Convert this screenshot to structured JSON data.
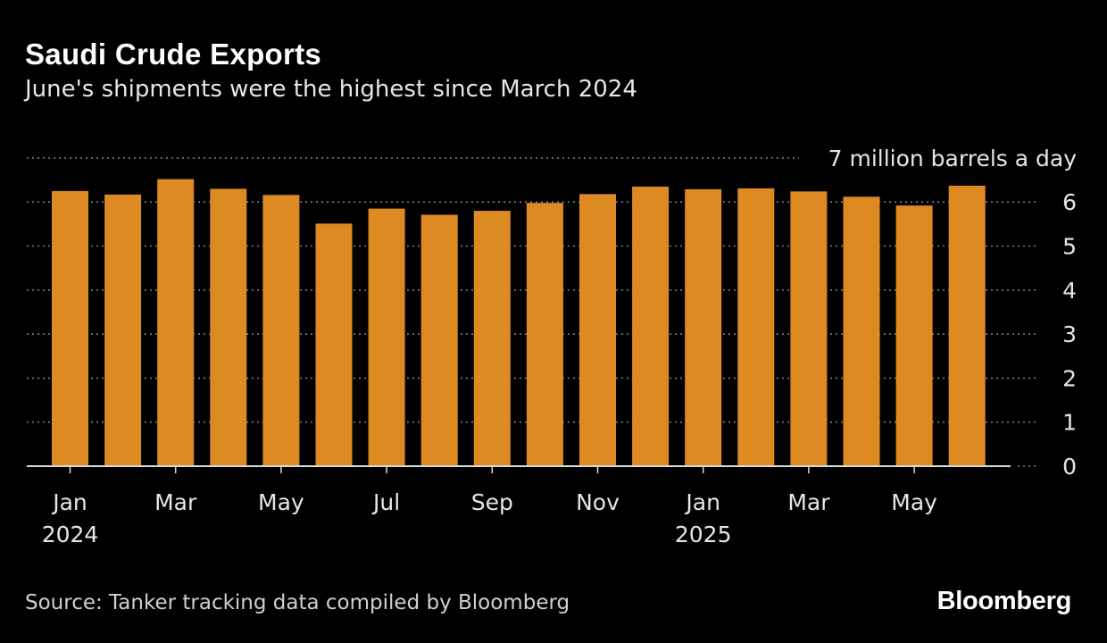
{
  "header": {
    "title": "Saudi Crude Exports",
    "subtitle": "June's shipments were the highest since March 2024"
  },
  "footer": {
    "source": "Source: Tanker tracking data compiled by Bloomberg",
    "brand": "Bloomberg"
  },
  "colors": {
    "bar": "#dd8a23",
    "background": "#000000",
    "grid": "#7f7f7f",
    "text": "#e6e6e6"
  },
  "chart_data": {
    "type": "bar",
    "title": "Saudi Crude Exports",
    "subtitle": "June's shipments were the highest since March 2024",
    "unit_label": "7 million barrels a day",
    "categories": [
      "2024-01",
      "2024-02",
      "2024-03",
      "2024-04",
      "2024-05",
      "2024-06",
      "2024-07",
      "2024-08",
      "2024-09",
      "2024-10",
      "2024-11",
      "2024-12",
      "2025-01",
      "2025-02",
      "2025-03",
      "2025-04",
      "2025-05",
      "2025-06"
    ],
    "values": [
      6.25,
      6.17,
      6.52,
      6.3,
      6.16,
      5.51,
      5.85,
      5.71,
      5.8,
      5.98,
      6.18,
      6.35,
      6.29,
      6.31,
      6.24,
      6.12,
      5.92,
      6.37
    ],
    "x_tick_labels": [
      {
        "index": 0,
        "label": "Jan",
        "sublabel": "2024"
      },
      {
        "index": 2,
        "label": "Mar"
      },
      {
        "index": 4,
        "label": "May"
      },
      {
        "index": 6,
        "label": "Jul"
      },
      {
        "index": 8,
        "label": "Sep"
      },
      {
        "index": 10,
        "label": "Nov"
      },
      {
        "index": 12,
        "label": "Jan",
        "sublabel": "2025"
      },
      {
        "index": 14,
        "label": "Mar"
      },
      {
        "index": 16,
        "label": "May"
      }
    ],
    "y_ticks": [
      0,
      1,
      2,
      3,
      4,
      5,
      6,
      7
    ],
    "y_tick_labels": [
      "0",
      "1",
      "2",
      "3",
      "4",
      "5",
      "6",
      "7 million barrels a day"
    ],
    "ylim": [
      0,
      7
    ],
    "grid": true,
    "y_axis_side": "right",
    "legend": "none"
  }
}
